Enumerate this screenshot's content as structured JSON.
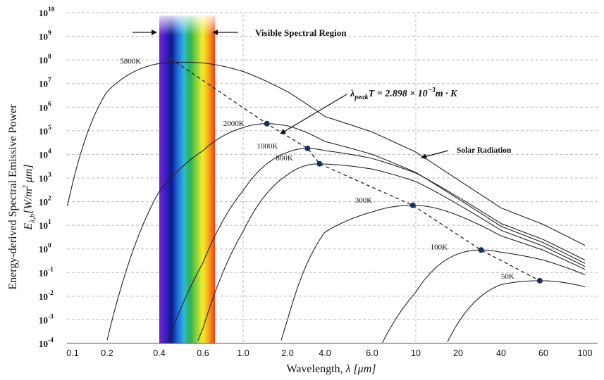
{
  "chart_data": {
    "type": "line",
    "title": "",
    "xlabel_text": "Wavelength, ",
    "xlabel_math": "λ [μm]",
    "ylabel_line1": "Energy-derived Spectral Emissive Power",
    "ylabel_line2_sym": "E",
    "ylabel_line2_sub": "λ,b",
    "ylabel_line2_units": "[W/m",
    "ylabel_line2_units_sup": "2",
    "ylabel_line2_units_end": " μm]",
    "x_ticks": [
      "0.1",
      "0.2",
      "0.4",
      "0.6",
      "1.0",
      "2.0",
      "4.0",
      "6.0",
      "10",
      "20",
      "40",
      "60",
      "100"
    ],
    "y_exponents": [
      "10",
      "9",
      "8",
      "7",
      "6",
      "5",
      "4",
      "3",
      "2",
      "1",
      "0",
      "-1",
      "-2",
      "-3",
      "-4"
    ],
    "y_base": "10",
    "ylim_log10": [
      -4,
      10
    ],
    "grid": "dashed-partial",
    "series": [
      {
        "name": "5800K",
        "T": 5800,
        "peak": [
          0.4995,
          80000000.0
        ]
      },
      {
        "name": "2000K",
        "T": 2000,
        "peak": [
          1.449,
          200000.0
        ]
      },
      {
        "name": "1000K",
        "T": 1000,
        "peak": [
          2.898,
          18000.0
        ]
      },
      {
        "name": "800K",
        "T": 800,
        "peak": [
          3.62,
          4000.0
        ]
      },
      {
        "name": "300K",
        "T": 300,
        "peak": [
          9.66,
          70.0
        ]
      },
      {
        "name": "100K",
        "T": 100,
        "peak": [
          28.98,
          0.9
        ]
      },
      {
        "name": "50K",
        "T": 50,
        "peak": [
          57.96,
          0.045
        ]
      }
    ],
    "annotations": {
      "visible_region": "Visible Spectral Region",
      "solar": "Solar Radiation",
      "wien_lhs": "λ",
      "wien_sub": "peak",
      "wien_rhs": "T = 2.898 × 10",
      "wien_exp": "−3",
      "wien_units": "m · K"
    },
    "colors": {
      "curve": "#222222",
      "marker": "#1b2f5e",
      "grid": "#bbbbbb",
      "spectrum": [
        "#7a1fd6",
        "#3a1fc4",
        "#0b1a8a",
        "#1e6fe0",
        "#2fb9d0",
        "#2cb24a",
        "#8fd13a",
        "#f4ee2a",
        "#f7a21c",
        "#ef3b1b"
      ]
    }
  }
}
